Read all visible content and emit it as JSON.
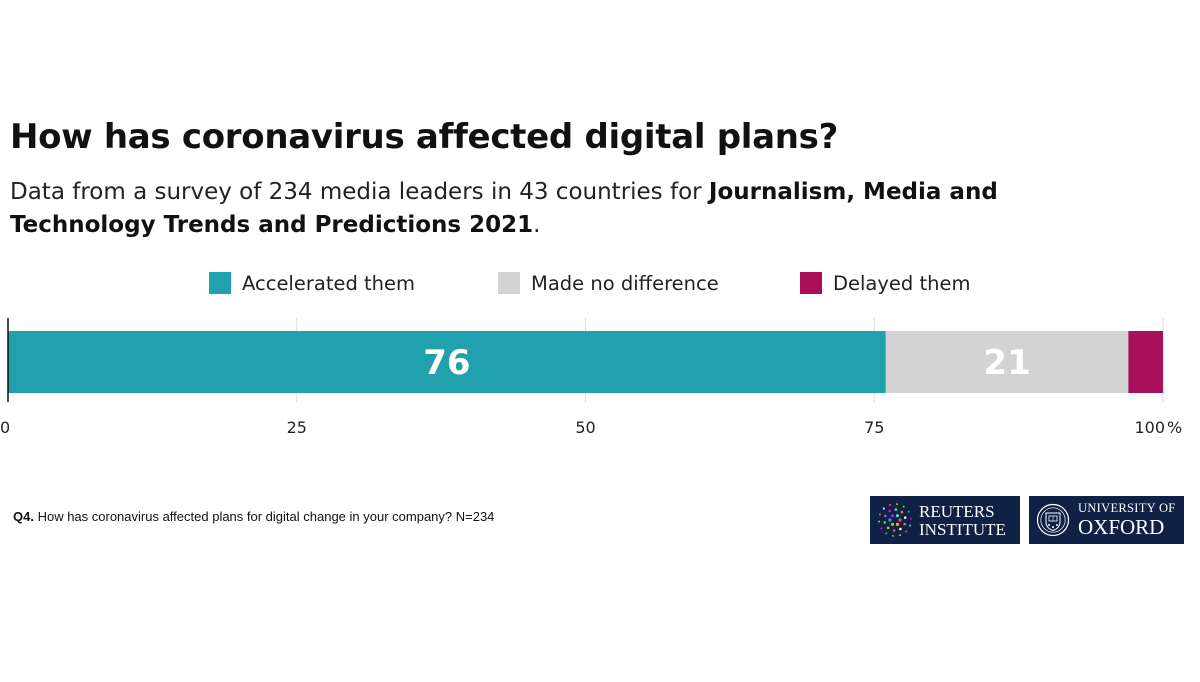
{
  "title": "How has coronavirus affected digital plans?",
  "subtitle": {
    "lead": "Data from a survey of 234 media leaders in 43 countries for ",
    "bold": "Journalism, Media and Technology Trends and Predictions 2021",
    "end": "."
  },
  "note": {
    "label": "Q4.",
    "text": " How has coronavirus affected plans for digital change in your company? N=234"
  },
  "logos": {
    "reuters": {
      "line1": "Reuters",
      "line2": "Institute"
    },
    "oxford": {
      "line1": "University of",
      "line2": "Oxford"
    }
  },
  "colors": {
    "accelerated": "#21a0ae",
    "no_difference": "#d3d3d3",
    "delayed": "#a8115a",
    "logo_bg": "#0f2144"
  },
  "chart_data": {
    "type": "bar",
    "orientation": "horizontal",
    "stacked": true,
    "categories": [
      ""
    ],
    "series": [
      {
        "name": "Accelerated them",
        "values": [
          76
        ],
        "color": "#21a0ae",
        "label": "76"
      },
      {
        "name": "Made no difference",
        "values": [
          21
        ],
        "color": "#d3d3d3",
        "label": "21"
      },
      {
        "name": "Delayed them",
        "values": [
          3
        ],
        "color": "#a8115a",
        "label": ""
      }
    ],
    "xlim": [
      0,
      100
    ],
    "xticks": [
      "0",
      "25",
      "50",
      "75",
      "100"
    ],
    "xunit": "%",
    "grid": true,
    "legend": "top"
  }
}
